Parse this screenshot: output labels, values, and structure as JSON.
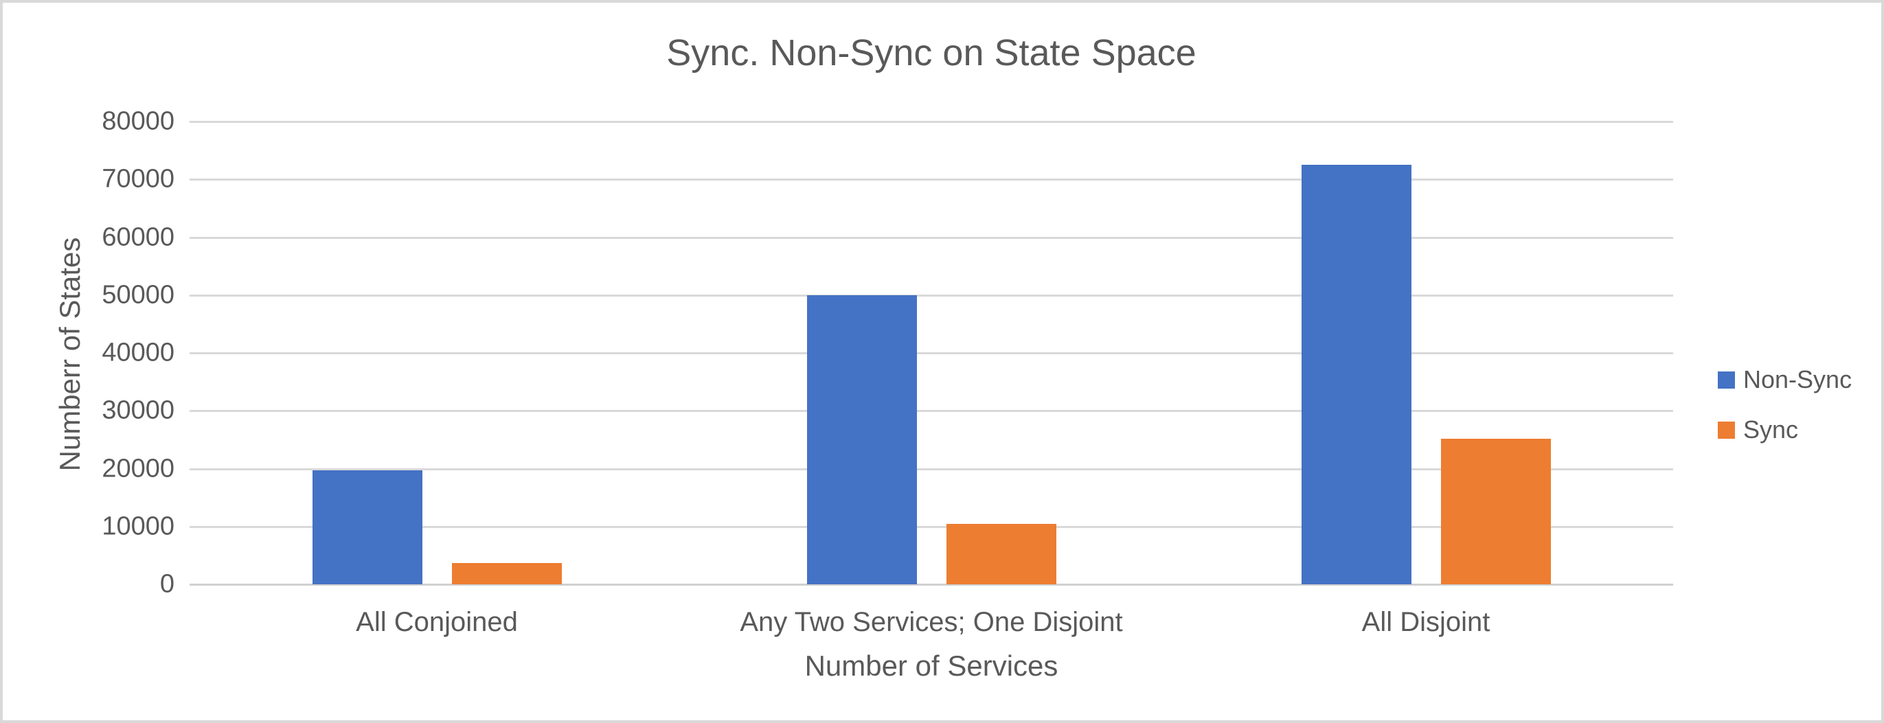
{
  "chart_data": {
    "type": "bar",
    "title": "Sync. Non-Sync on State Space",
    "xlabel": "Number of Services",
    "ylabel": "Numberr of States",
    "categories": [
      "All Conjoined",
      "Any Two Services; One Disjoint",
      "All Disjoint"
    ],
    "series": [
      {
        "name": "Non-Sync",
        "color": "#4472C4",
        "values": [
          19700,
          50000,
          72500
        ]
      },
      {
        "name": "Sync",
        "color": "#ED7D31",
        "values": [
          3700,
          10400,
          25200
        ]
      }
    ],
    "ylim": [
      0,
      80000
    ],
    "ytick_step": 10000,
    "ytick_labels": [
      "0",
      "10000",
      "20000",
      "30000",
      "40000",
      "50000",
      "60000",
      "70000",
      "80000"
    ],
    "grid": "horizontal",
    "legend_position": "right",
    "colors": {
      "text": "#595959",
      "gridline": "#D9D9D9",
      "chart_border": "#D9D9D9"
    }
  }
}
